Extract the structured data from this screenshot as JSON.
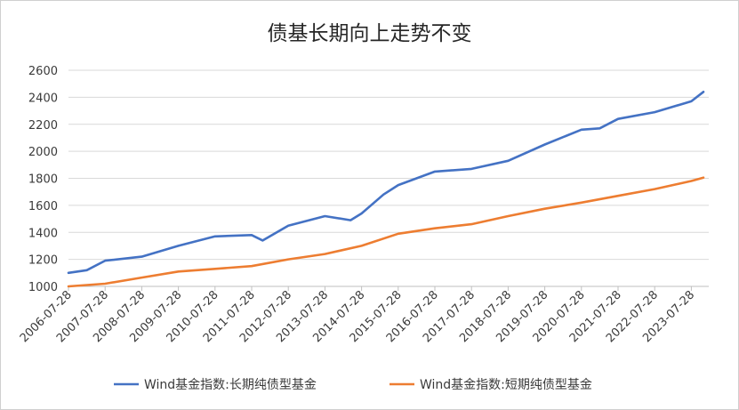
{
  "chart_data": {
    "type": "line",
    "title": "债基长期向上走势不变",
    "xlabel": "",
    "ylabel": "",
    "ylim": [
      1000,
      2600
    ],
    "yticks": [
      1000,
      1200,
      1400,
      1600,
      1800,
      2000,
      2200,
      2400,
      2600
    ],
    "categories": [
      "2006-07-28",
      "2007-07-28",
      "2008-07-28",
      "2009-07-28",
      "2010-07-28",
      "2011-07-28",
      "2012-07-28",
      "2013-07-28",
      "2014-07-28",
      "2015-07-28",
      "2016-07-28",
      "2017-07-28",
      "2018-07-28",
      "2019-07-28",
      "2020-07-28",
      "2021-07-28",
      "2022-07-28",
      "2023-07-28"
    ],
    "grid": true,
    "legend_position": "bottom",
    "series": [
      {
        "name": "Wind基金指数:长期纯债型基金",
        "color": "#4472C4",
        "x": [
          0,
          0.5,
          1,
          2,
          3,
          4,
          5,
          5.3,
          6,
          7,
          7.7,
          8,
          8.6,
          9,
          10,
          11,
          12,
          13,
          14,
          14.5,
          15,
          16,
          17,
          17.33
        ],
        "values": [
          1100,
          1120,
          1190,
          1220,
          1300,
          1370,
          1380,
          1340,
          1450,
          1520,
          1490,
          1540,
          1680,
          1750,
          1850,
          1870,
          1930,
          2050,
          2160,
          2170,
          2240,
          2290,
          2370,
          2440
        ]
      },
      {
        "name": "Wind基金指数:短期纯债型基金",
        "color": "#ED7D31",
        "x": [
          0,
          1,
          2,
          3,
          4,
          5,
          6,
          7,
          8,
          9,
          10,
          11,
          12,
          13,
          14,
          15,
          16,
          17,
          17.33
        ],
        "values": [
          1000,
          1020,
          1065,
          1110,
          1130,
          1150,
          1200,
          1240,
          1300,
          1390,
          1430,
          1460,
          1520,
          1575,
          1620,
          1670,
          1720,
          1780,
          1805
        ]
      }
    ]
  }
}
